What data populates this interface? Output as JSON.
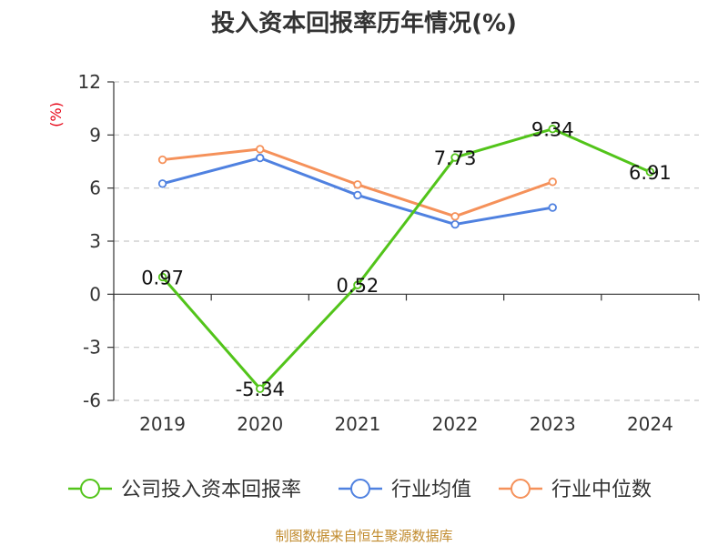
{
  "chart_data": {
    "type": "line",
    "title": "投入资本回报率历年情况(%)",
    "ylabel": "(%)",
    "xlabel": "",
    "categories": [
      "2019",
      "2020",
      "2021",
      "2022",
      "2023",
      "2024"
    ],
    "ylim": [
      -6,
      12
    ],
    "yticks": [
      "12",
      "9",
      "6",
      "3",
      "0",
      "-3",
      "-6"
    ],
    "ytick_values": [
      12,
      9,
      6,
      3,
      0,
      -3,
      -6
    ],
    "grid": true,
    "legend_position": "bottom",
    "series": [
      {
        "name": "公司投入资本回报率",
        "color": "#52c41a",
        "values": [
          0.97,
          -5.34,
          0.52,
          7.73,
          9.34,
          6.91
        ],
        "labels": [
          "0.97",
          "-5.34",
          "0.52",
          "7.73",
          "9.34",
          "6.91"
        ]
      },
      {
        "name": "行业均值",
        "color": "#4f81e0",
        "values": [
          6.25,
          7.7,
          5.6,
          3.95,
          4.9,
          null
        ]
      },
      {
        "name": "行业中位数",
        "color": "#f5915a",
        "values": [
          7.6,
          8.2,
          6.2,
          4.4,
          6.35,
          null
        ]
      }
    ]
  },
  "footer": {
    "source": "制图数据来自恒生聚源数据库"
  }
}
